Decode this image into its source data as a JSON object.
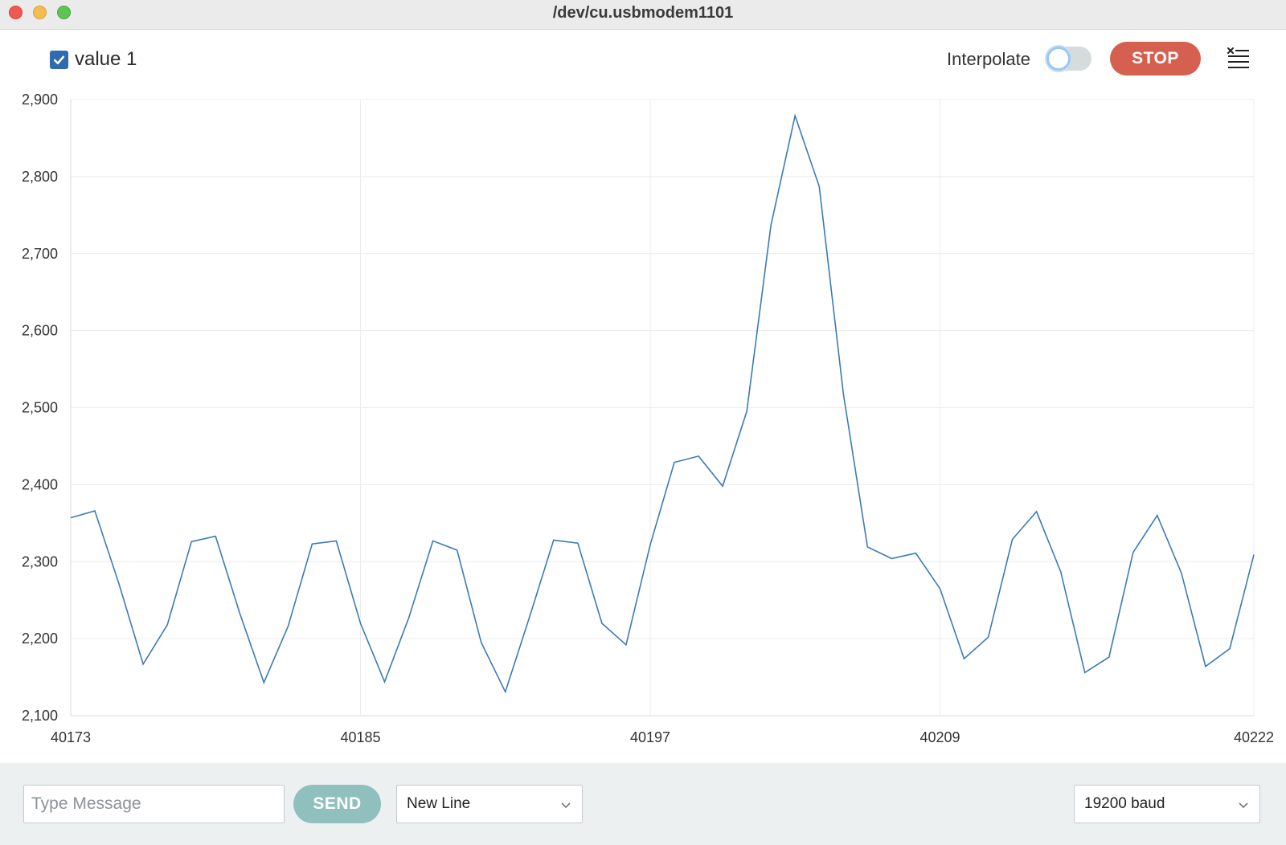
{
  "window": {
    "title": "/dev/cu.usbmodem1101"
  },
  "toolbar": {
    "series_label": "value 1",
    "series_checked": true,
    "interpolate_label": "Interpolate",
    "interpolate_on": false,
    "stop_label": "STOP",
    "clear_icon": "clear-list-icon"
  },
  "colors": {
    "line": "#3b7bb6",
    "stop": "#d6604f",
    "send": "#8fc0bd",
    "checkbox": "#2f6bae"
  },
  "chart_data": {
    "type": "line",
    "title": "",
    "xlabel": "",
    "ylabel": "",
    "xlim": [
      40173,
      40222
    ],
    "ylim": [
      2100,
      2900
    ],
    "y_ticks": [
      "2,900",
      "2,800",
      "2,700",
      "2,600",
      "2,500",
      "2,400",
      "2,300",
      "2,200",
      "2,100"
    ],
    "x_ticks": [
      "40173",
      "40185",
      "40197",
      "40209",
      "40222"
    ],
    "grid": true,
    "series": [
      {
        "name": "value 1",
        "x": [
          40173,
          40174,
          40175,
          40176,
          40177,
          40178,
          40179,
          40180,
          40181,
          40182,
          40183,
          40184,
          40185,
          40186,
          40187,
          40188,
          40189,
          40190,
          40191,
          40192,
          40193,
          40194,
          40195,
          40196,
          40197,
          40198,
          40199,
          40200,
          40201,
          40202,
          40203,
          40204,
          40205,
          40206,
          40207,
          40208,
          40209,
          40210,
          40211,
          40212,
          40213,
          40214,
          40215,
          40216,
          40217,
          40218,
          40219,
          40220,
          40221,
          40222
        ],
        "values": [
          2357,
          2366,
          2271,
          2167,
          2218,
          2326,
          2333,
          2233,
          2143,
          2216,
          2323,
          2327,
          2220,
          2144,
          2227,
          2327,
          2315,
          2195,
          2131,
          2228,
          2328,
          2324,
          2220,
          2192,
          2322,
          2429,
          2437,
          2398,
          2495,
          2737,
          2879,
          2787,
          2518,
          2319,
          2304,
          2311,
          2265,
          2174,
          2202,
          2329,
          2365,
          2287,
          2156,
          2176,
          2312,
          2360,
          2285,
          2164,
          2187,
          2309
        ]
      }
    ]
  },
  "footer": {
    "message_placeholder": "Type Message",
    "message_value": "",
    "send_label": "SEND",
    "line_ending": "New Line",
    "baud": "19200 baud"
  }
}
